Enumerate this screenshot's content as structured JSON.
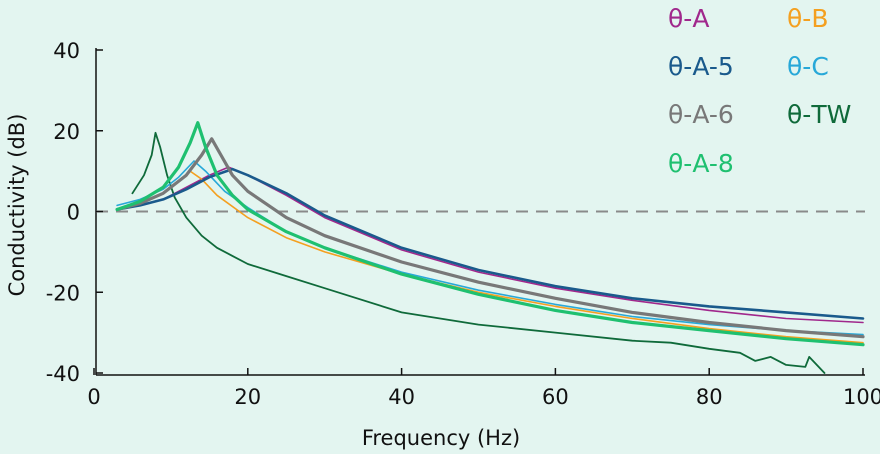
{
  "chart_data": {
    "type": "line",
    "xlabel": "Frequency (Hz)",
    "ylabel": "Conductivity (dB)",
    "xlim": [
      0,
      100
    ],
    "ylim": [
      -40,
      40
    ],
    "xticks": [
      0,
      20,
      40,
      60,
      80,
      100
    ],
    "yticks": [
      40,
      20,
      0,
      -20,
      -40
    ],
    "xtick_labels": [
      "0",
      "20",
      "40",
      "60",
      "80",
      "100"
    ],
    "ytick_labels": [
      "40",
      "20",
      "0",
      "-20",
      "-40"
    ],
    "reference_line": {
      "y": 0,
      "style": "dashed"
    },
    "grid": false,
    "legend_position": "top-right",
    "series": [
      {
        "name": "θ-A",
        "color": "#a0288c",
        "x": [
          3,
          6,
          9,
          12,
          15,
          17.5,
          20,
          25,
          30,
          40,
          50,
          60,
          70,
          80,
          90,
          100
        ],
        "y": [
          0.5,
          1.5,
          3,
          6,
          9,
          11,
          9,
          4,
          -1.5,
          -9.5,
          -15,
          -19,
          -22,
          -24.5,
          -26.5,
          -27.5
        ]
      },
      {
        "name": "θ-B",
        "color": "#f4a020",
        "x": [
          3,
          6,
          9,
          11,
          12.5,
          14,
          16,
          20,
          25,
          30,
          40,
          50,
          60,
          70,
          80,
          90,
          100
        ],
        "y": [
          0.5,
          2,
          4.5,
          7.5,
          10,
          8,
          4,
          -1.5,
          -6.5,
          -10,
          -15.5,
          -20,
          -23.5,
          -26.5,
          -29,
          -31,
          -32.5
        ]
      },
      {
        "name": "θ-A-5",
        "color": "#1a5a8c",
        "x": [
          3,
          6,
          9,
          12,
          15,
          18,
          20,
          25,
          30,
          40,
          50,
          60,
          70,
          80,
          90,
          100
        ],
        "y": [
          0.5,
          1.5,
          3,
          5.5,
          8.5,
          10.5,
          9,
          4.5,
          -1,
          -9,
          -14.5,
          -18.5,
          -21.5,
          -23.5,
          -25,
          -26.5
        ]
      },
      {
        "name": "θ-C",
        "color": "#28a8d8",
        "x": [
          3,
          6,
          9,
          11,
          13,
          14.5,
          17,
          20,
          25,
          30,
          40,
          50,
          60,
          70,
          80,
          90,
          100
        ],
        "y": [
          1.5,
          3,
          5.5,
          8.5,
          12.5,
          10,
          5,
          1,
          -5,
          -9,
          -15,
          -19.5,
          -23,
          -26,
          -28,
          -29.5,
          -30.5
        ]
      },
      {
        "name": "θ-A-6",
        "color": "#787878",
        "x": [
          3,
          6,
          9,
          12,
          14,
          15.3,
          16.5,
          18,
          20,
          25,
          30,
          40,
          50,
          60,
          70,
          80,
          90,
          100
        ],
        "y": [
          0.5,
          2,
          4.5,
          9,
          14,
          18,
          14,
          9,
          5,
          -1.5,
          -6,
          -12.5,
          -17.5,
          -21.5,
          -25,
          -27.5,
          -29.5,
          -31
        ]
      },
      {
        "name": "θ-TW",
        "color": "#0f6a3a",
        "x": [
          5,
          6.5,
          7.5,
          8,
          8.6,
          9.5,
          10.5,
          12,
          14,
          16,
          18,
          20,
          25,
          30,
          40,
          50,
          60,
          70,
          75,
          80,
          84,
          86,
          88,
          90,
          92.5,
          93,
          95
        ],
        "y": [
          4.5,
          9,
          14,
          19.5,
          16,
          9,
          3.5,
          -1.5,
          -6,
          -9,
          -11,
          -13,
          -16,
          -19,
          -25,
          -28,
          -30,
          -32,
          -32.5,
          -34,
          -35,
          -37,
          -36,
          -38,
          -38.5,
          -36,
          -40
        ]
      },
      {
        "name": "θ-A-8",
        "color": "#1fc070",
        "x": [
          3,
          6,
          9,
          11,
          12.5,
          13.5,
          14.5,
          16,
          18,
          20,
          25,
          30,
          40,
          50,
          60,
          70,
          80,
          90,
          100
        ],
        "y": [
          0.5,
          2.5,
          6,
          11,
          17,
          22,
          16,
          9,
          4,
          0.5,
          -5,
          -9,
          -15.5,
          -20.5,
          -24.5,
          -27.5,
          -29.5,
          -31.5,
          -33
        ]
      }
    ]
  }
}
